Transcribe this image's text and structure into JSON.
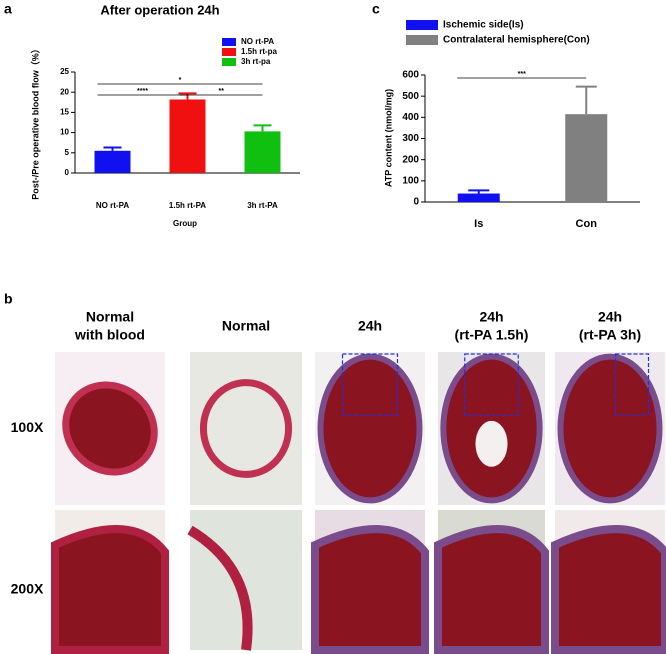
{
  "chart_data": [
    {
      "type": "bar",
      "panel": "a",
      "title": "After operation 24h",
      "x_label": "Group",
      "y_label": "Post-/Pre operative blood flow（%）",
      "categories": [
        "NO rt-PA",
        "1.5h rt-PA",
        "3h rt-PA"
      ],
      "values": [
        5.5,
        18.2,
        10.3
      ],
      "errors": [
        0.8,
        1.5,
        1.5
      ],
      "colors": [
        "#1010f0",
        "#f01010",
        "#10c010"
      ],
      "legend": [
        "NO rt-PA",
        "1.5h rt-pa",
        "3h rt-pa"
      ],
      "significance": [
        "*",
        "****",
        "**"
      ],
      "ylim": [
        0,
        25
      ],
      "yticks": [
        0,
        5,
        10,
        15,
        20,
        25
      ]
    },
    {
      "type": "bar",
      "panel": "c",
      "y_label": "ATP content (nmol/mg)",
      "categories": [
        "Is",
        "Con"
      ],
      "values": [
        40,
        415
      ],
      "errors": [
        15,
        130
      ],
      "colors": [
        "#1010f0",
        "#808080"
      ],
      "legend": [
        "Ischemic side(Is)",
        "Contralateral hemisphere(Con)"
      ],
      "significance": [
        "***"
      ],
      "ylim": [
        0,
        600
      ],
      "yticks": [
        0,
        100,
        200,
        300,
        400,
        500,
        600
      ]
    }
  ],
  "panel_b": {
    "panel": "b",
    "columns": [
      [
        "Normal",
        "with blood"
      ],
      [
        "Normal"
      ],
      [
        "24h"
      ],
      [
        "24h",
        "(rt-PA 1.5h)"
      ],
      [
        "24h",
        "(rt-PA 3h)"
      ]
    ],
    "rows": [
      "100X",
      "200X"
    ]
  }
}
